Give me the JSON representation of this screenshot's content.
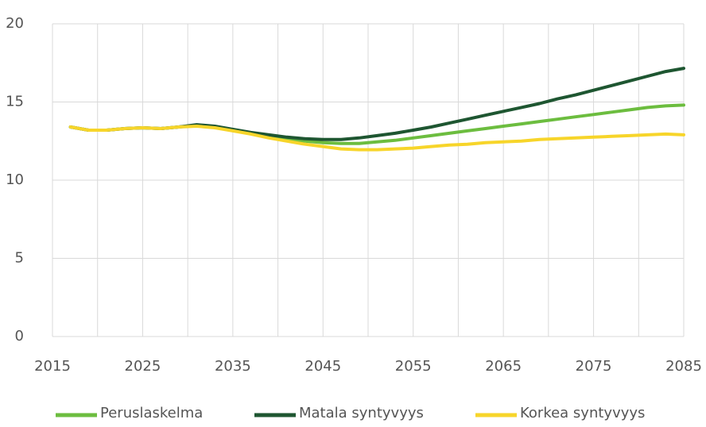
{
  "chart_data": {
    "type": "line",
    "x": [
      2017,
      2019,
      2021,
      2023,
      2025,
      2027,
      2029,
      2031,
      2033,
      2035,
      2037,
      2039,
      2041,
      2043,
      2045,
      2047,
      2049,
      2051,
      2053,
      2055,
      2057,
      2059,
      2061,
      2063,
      2065,
      2067,
      2069,
      2071,
      2073,
      2075,
      2077,
      2079,
      2081,
      2083,
      2085
    ],
    "series": [
      {
        "name": "Peruslaskelma",
        "color": "#6cbd3f",
        "values": [
          13.4,
          13.2,
          13.2,
          13.3,
          13.35,
          13.3,
          13.4,
          13.5,
          13.4,
          13.2,
          13.0,
          12.8,
          12.6,
          12.5,
          12.4,
          12.35,
          12.35,
          12.45,
          12.55,
          12.7,
          12.85,
          13.0,
          13.15,
          13.3,
          13.45,
          13.6,
          13.75,
          13.9,
          14.05,
          14.2,
          14.35,
          14.5,
          14.65,
          14.75,
          14.8
        ]
      },
      {
        "name": "Matala syntyvyys",
        "color": "#1e5631",
        "values": [
          13.4,
          13.2,
          13.2,
          13.3,
          13.35,
          13.3,
          13.4,
          13.55,
          13.45,
          13.25,
          13.05,
          12.9,
          12.75,
          12.65,
          12.6,
          12.6,
          12.7,
          12.85,
          13.0,
          13.2,
          13.4,
          13.65,
          13.9,
          14.15,
          14.4,
          14.65,
          14.9,
          15.2,
          15.45,
          15.75,
          16.05,
          16.35,
          16.65,
          16.95,
          17.15
        ]
      },
      {
        "name": "Korkea syntyvyys",
        "color": "#f7d52a",
        "values": [
          13.4,
          13.2,
          13.2,
          13.3,
          13.35,
          13.3,
          13.4,
          13.45,
          13.35,
          13.15,
          12.95,
          12.7,
          12.5,
          12.3,
          12.15,
          12.0,
          11.95,
          11.95,
          12.0,
          12.05,
          12.15,
          12.25,
          12.3,
          12.4,
          12.45,
          12.5,
          12.6,
          12.65,
          12.7,
          12.75,
          12.8,
          12.85,
          12.9,
          12.95,
          12.9
        ]
      }
    ],
    "xlim": [
      2015,
      2085
    ],
    "xticks": [
      2015,
      2025,
      2035,
      2045,
      2055,
      2065,
      2075,
      2085
    ],
    "xgrid": [
      2020,
      2030,
      2040,
      2050,
      2060,
      2070,
      2080
    ],
    "ylim": [
      0,
      20
    ],
    "yticks": [
      0,
      5,
      10,
      15,
      20
    ],
    "grid": true,
    "legend": "bottom"
  }
}
